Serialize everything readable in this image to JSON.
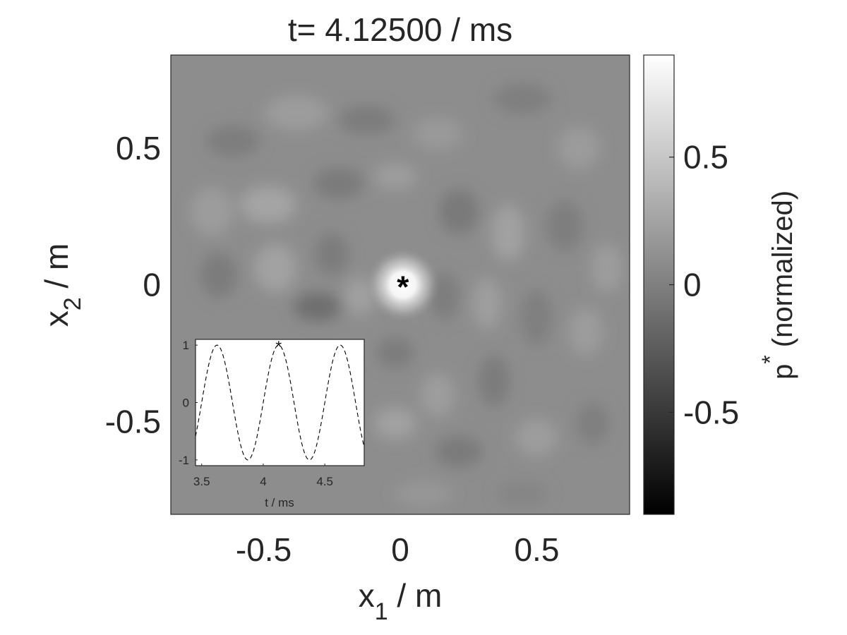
{
  "chart_data": [
    {
      "type": "heatmap",
      "title": "t= 4.12500 / ms",
      "xlabel": {
        "main": "x",
        "sub": "1",
        "unit": " / m"
      },
      "ylabel": {
        "main": "x",
        "sub": "2",
        "unit": " / m"
      },
      "xlim": [
        -0.84,
        0.84
      ],
      "ylim": [
        -0.84,
        0.84
      ],
      "x_ticks": [
        -0.5,
        0,
        0.5
      ],
      "x_tick_labels": [
        "-0.5",
        "0",
        "0.5"
      ],
      "y_ticks": [
        0.5,
        0,
        -0.5
      ],
      "y_tick_labels": [
        "0.5",
        "0",
        "-0.5"
      ],
      "source_marker": {
        "x": 0.01,
        "y": 0.0,
        "symbol": "*"
      },
      "colormap": "gray",
      "colorbar": {
        "label": {
          "main": "p",
          "sup": "*",
          "rest": " (normalized)"
        },
        "range": [
          -0.9,
          0.9
        ],
        "ticks": [
          0.5,
          0,
          -0.5
        ],
        "tick_labels": [
          "0.5",
          "0",
          "-0.5"
        ]
      }
    },
    {
      "type": "line",
      "xlabel": "t / ms",
      "xlim": [
        3.45,
        4.82
      ],
      "ylim": [
        -1.1,
        1.1
      ],
      "x_ticks": [
        3.5,
        4,
        4.5
      ],
      "x_tick_labels": [
        "3.5",
        "4",
        "4.5"
      ],
      "y_ticks": [
        1,
        0,
        -1
      ],
      "y_tick_labels": [
        "1",
        "0",
        "-1"
      ],
      "series": [
        {
          "style": "dashed",
          "color": "#000000",
          "frequency_khz": 2.0,
          "phase_peak_t": 4.125
        }
      ],
      "current_point": {
        "x": 4.125,
        "y": 1.0,
        "symbol": "*"
      }
    }
  ]
}
